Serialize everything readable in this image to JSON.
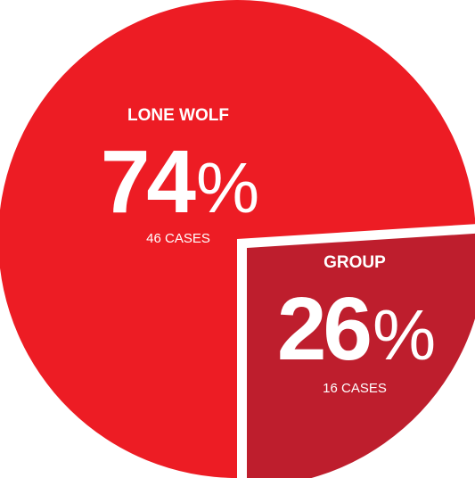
{
  "chart_data": {
    "type": "pie",
    "categories": [
      "LONE WOLF",
      "GROUP"
    ],
    "values": [
      74,
      26
    ],
    "value_labels": [
      "74%",
      "26%"
    ],
    "case_labels": [
      "46 CASES",
      "16 CASES"
    ],
    "colors": [
      "#ed1c24",
      "#be1e2d"
    ]
  }
}
